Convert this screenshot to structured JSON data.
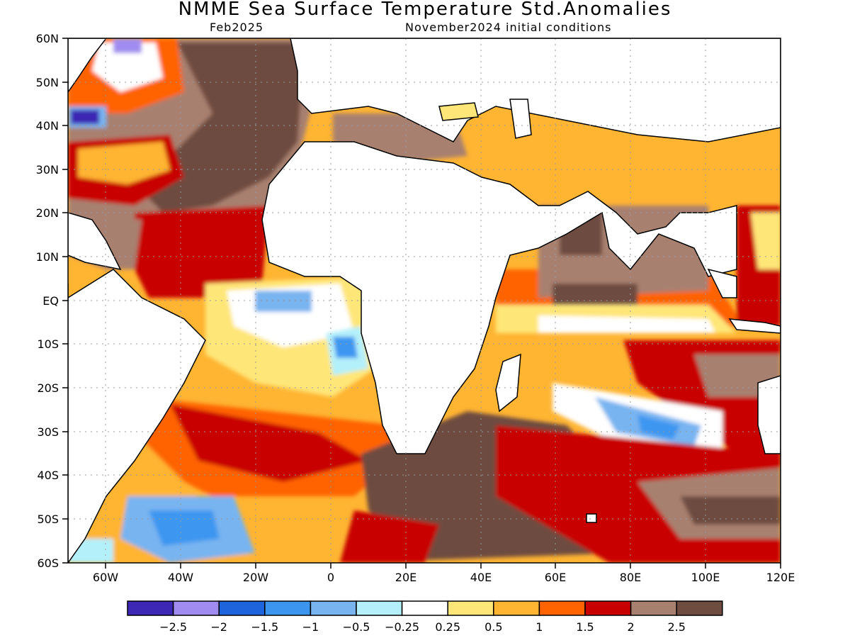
{
  "header": {
    "title": "NMME Sea Surface Temperature Std.Anomalies",
    "forecast_month": "Feb2025",
    "initial_conditions": "November2024 initial conditions"
  },
  "map": {
    "lon_range": [
      -70,
      120
    ],
    "lat_range": [
      -60,
      60
    ],
    "lat_labels": [
      "60N",
      "50N",
      "40N",
      "30N",
      "20N",
      "10N",
      "EQ",
      "10S",
      "20S",
      "30S",
      "40S",
      "50S",
      "60S"
    ],
    "lon_labels": [
      "60W",
      "40W",
      "20W",
      "0",
      "20E",
      "40E",
      "60E",
      "80E",
      "100E",
      "120E"
    ],
    "land_color": "#ffffff",
    "gridlines": "dotted"
  },
  "colorbar": {
    "colors": [
      "#3c28b4",
      "#a08cf0",
      "#1e64dc",
      "#3c96f0",
      "#78b4f0",
      "#b4f0fa",
      "#ffffff",
      "#ffe678",
      "#ffb432",
      "#ff6400",
      "#c80000",
      "#a88070",
      "#6e4c40"
    ],
    "labels": [
      "−2.5",
      "−2",
      "−1.5",
      "−1",
      "−0.5",
      "−0.25",
      "0.25",
      "0.5",
      "1",
      "1.5",
      "2",
      "2.5"
    ]
  }
}
